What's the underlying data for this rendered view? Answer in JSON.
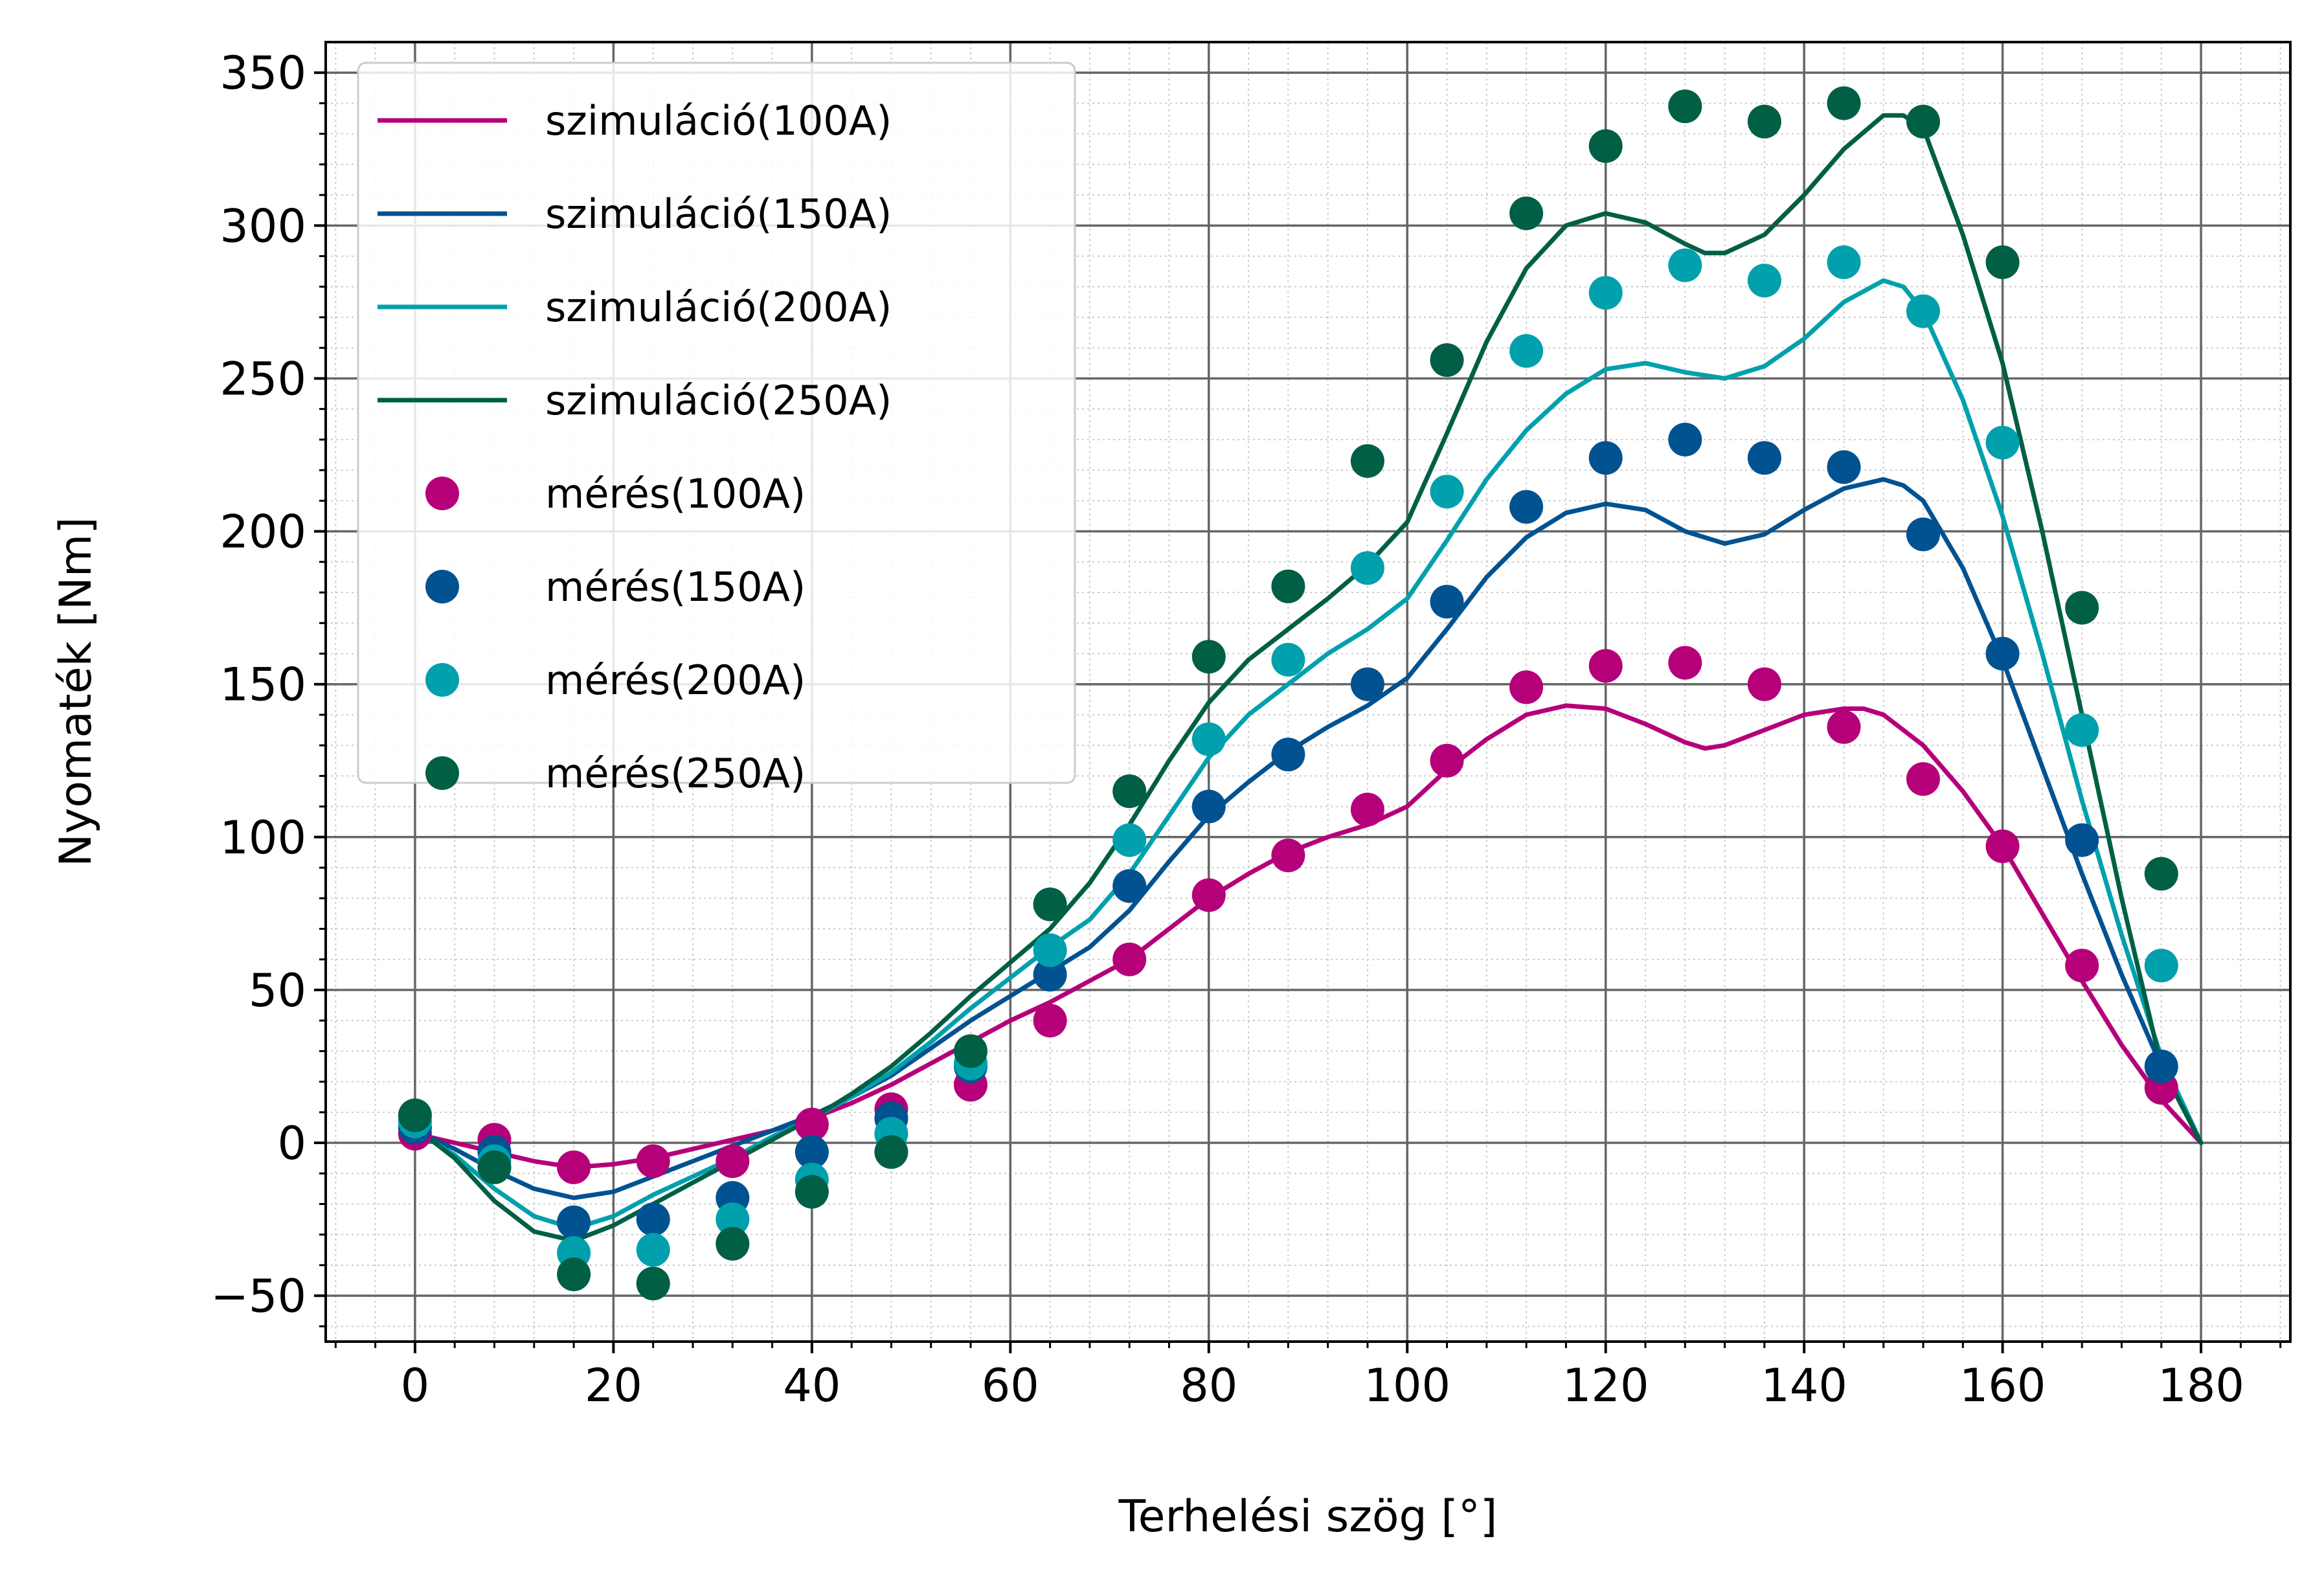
{
  "chart_data": {
    "type": "line",
    "title": "",
    "xlabel": "Terhelési szög [°]",
    "ylabel": "Nyomaték [Nm]",
    "xlim": [
      -9,
      189
    ],
    "ylim": [
      -65,
      360
    ],
    "x_ticks": [
      0,
      20,
      40,
      60,
      80,
      100,
      120,
      140,
      160,
      180
    ],
    "y_ticks": [
      -50,
      0,
      50,
      100,
      150,
      200,
      250,
      300,
      350
    ],
    "x_tick_labels": [
      "0",
      "20",
      "40",
      "60",
      "80",
      "100",
      "120",
      "140",
      "160",
      "180"
    ],
    "y_tick_labels": [
      "−50",
      "0",
      "50",
      "100",
      "150",
      "200",
      "250",
      "300",
      "350"
    ],
    "grid": {
      "major": true,
      "minor": true
    },
    "legend_position": "top-left",
    "simulation_series": [
      {
        "name": "szimuláció(100A)",
        "color": "#b5007a",
        "x": [
          0,
          4,
          8,
          12,
          16,
          20,
          24,
          28,
          32,
          36,
          40,
          44,
          48,
          52,
          56,
          60,
          64,
          68,
          72,
          76,
          80,
          84,
          88,
          92,
          96,
          100,
          104,
          108,
          112,
          116,
          120,
          124,
          128,
          130,
          132,
          136,
          140,
          144,
          146,
          148,
          152,
          156,
          160,
          164,
          168,
          172,
          176,
          180
        ],
        "values": [
          3,
          0,
          -3,
          -6,
          -8,
          -7,
          -5,
          -2,
          1,
          4,
          8,
          13,
          19,
          26,
          33,
          40,
          46,
          53,
          60,
          70,
          80,
          88,
          95,
          100,
          104,
          110,
          122,
          132,
          140,
          143,
          142,
          137,
          131,
          129,
          130,
          135,
          140,
          142,
          142,
          140,
          130,
          115,
          97,
          75,
          53,
          32,
          14,
          0
        ]
      },
      {
        "name": "szimuláció(150A)",
        "color": "#005291",
        "x": [
          0,
          4,
          8,
          12,
          16,
          20,
          24,
          28,
          32,
          36,
          40,
          44,
          48,
          52,
          56,
          60,
          64,
          68,
          72,
          76,
          80,
          84,
          88,
          92,
          96,
          100,
          104,
          108,
          112,
          116,
          120,
          124,
          128,
          132,
          136,
          140,
          144,
          148,
          150,
          152,
          156,
          160,
          164,
          168,
          172,
          176,
          180
        ],
        "values": [
          4,
          -2,
          -9,
          -15,
          -18,
          -16,
          -11,
          -6,
          -1,
          4,
          9,
          15,
          22,
          31,
          40,
          48,
          56,
          64,
          76,
          92,
          107,
          118,
          128,
          136,
          143,
          152,
          168,
          185,
          198,
          206,
          209,
          207,
          200,
          196,
          199,
          207,
          214,
          217,
          215,
          210,
          188,
          158,
          123,
          88,
          55,
          25,
          0
        ]
      },
      {
        "name": "szimuláció(200A)",
        "color": "#00a0ad",
        "x": [
          0,
          4,
          8,
          12,
          16,
          20,
          24,
          28,
          32,
          36,
          40,
          44,
          48,
          52,
          56,
          60,
          64,
          68,
          72,
          76,
          80,
          84,
          88,
          92,
          96,
          100,
          104,
          108,
          112,
          116,
          120,
          124,
          128,
          132,
          136,
          140,
          144,
          148,
          150,
          152,
          156,
          160,
          164,
          168,
          172,
          176,
          180
        ],
        "values": [
          4,
          -4,
          -15,
          -24,
          -28,
          -24,
          -17,
          -11,
          -5,
          2,
          8,
          15,
          23,
          33,
          44,
          54,
          64,
          73,
          88,
          107,
          126,
          140,
          150,
          160,
          168,
          178,
          197,
          217,
          233,
          245,
          253,
          255,
          252,
          250,
          254,
          263,
          275,
          282,
          280,
          272,
          243,
          205,
          160,
          112,
          68,
          28,
          0
        ]
      },
      {
        "name": "szimuláció(250A)",
        "color": "#005f45",
        "x": [
          0,
          4,
          8,
          12,
          16,
          20,
          24,
          28,
          32,
          36,
          40,
          44,
          48,
          52,
          56,
          60,
          64,
          68,
          72,
          76,
          80,
          84,
          88,
          92,
          96,
          100,
          104,
          108,
          112,
          116,
          120,
          124,
          128,
          130,
          132,
          136,
          140,
          144,
          148,
          150,
          152,
          156,
          160,
          164,
          168,
          172,
          176,
          180
        ],
        "values": [
          5,
          -5,
          -19,
          -29,
          -32,
          -27,
          -20,
          -13,
          -6,
          1,
          8,
          16,
          25,
          36,
          48,
          59,
          70,
          85,
          104,
          125,
          144,
          158,
          168,
          178,
          189,
          203,
          232,
          262,
          286,
          300,
          304,
          301,
          294,
          291,
          291,
          297,
          310,
          325,
          336,
          336,
          332,
          297,
          255,
          200,
          140,
          80,
          25,
          0
        ]
      }
    ],
    "measurement_series": [
      {
        "name": "mérés(100A)",
        "color": "#b5007a",
        "x": [
          0,
          8,
          16,
          24,
          32,
          40,
          48,
          56,
          64,
          72,
          80,
          88,
          96,
          104,
          112,
          120,
          128,
          136,
          144,
          152,
          160,
          168,
          176
        ],
        "values": [
          3,
          1,
          -8,
          -6,
          -6,
          6,
          11,
          19,
          40,
          60,
          81,
          94,
          109,
          125,
          149,
          156,
          157,
          150,
          136,
          119,
          97,
          58,
          18
        ]
      },
      {
        "name": "mérés(150A)",
        "color": "#005291",
        "x": [
          0,
          8,
          16,
          24,
          32,
          40,
          48,
          56,
          64,
          72,
          80,
          88,
          96,
          104,
          112,
          120,
          128,
          136,
          144,
          152,
          160,
          168,
          176
        ],
        "values": [
          5,
          -3,
          -26,
          -25,
          -18,
          -3,
          8,
          25,
          55,
          84,
          110,
          127,
          150,
          177,
          208,
          224,
          230,
          224,
          221,
          199,
          160,
          99,
          25
        ]
      },
      {
        "name": "mérés(200A)",
        "color": "#00a0ad",
        "x": [
          0,
          8,
          16,
          24,
          32,
          40,
          48,
          56,
          64,
          72,
          80,
          88,
          96,
          104,
          112,
          120,
          128,
          136,
          144,
          152,
          160,
          168,
          176
        ],
        "values": [
          7,
          -6,
          -36,
          -35,
          -25,
          -12,
          3,
          26,
          63,
          99,
          132,
          158,
          188,
          213,
          259,
          278,
          287,
          282,
          288,
          272,
          229,
          135,
          58
        ]
      },
      {
        "name": "mérés(250A)",
        "color": "#005f45",
        "x": [
          0,
          8,
          16,
          24,
          32,
          40,
          48,
          56,
          64,
          72,
          80,
          88,
          96,
          104,
          112,
          120,
          128,
          136,
          144,
          152,
          160,
          168,
          176
        ],
        "values": [
          9,
          -8,
          -43,
          -46,
          -33,
          -16,
          -3,
          30,
          78,
          115,
          159,
          182,
          223,
          256,
          304,
          326,
          339,
          334,
          340,
          334,
          288,
          175,
          88
        ]
      }
    ]
  }
}
